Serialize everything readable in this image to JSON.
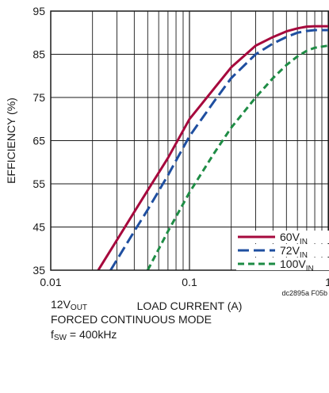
{
  "chart_data": {
    "type": "line",
    "xlabel": "LOAD CURRENT (A)",
    "ylabel": "EFFICIENCY (%)",
    "x_scale": "log",
    "xlim": [
      0.01,
      1
    ],
    "ylim": [
      35,
      95
    ],
    "x_ticks": [
      {
        "value": 0.01,
        "label": "0.01"
      },
      {
        "value": 0.1,
        "label": "0.1"
      },
      {
        "value": 1,
        "label": "1"
      }
    ],
    "y_ticks": [
      {
        "value": 35,
        "label": "35"
      },
      {
        "value": 45,
        "label": "45"
      },
      {
        "value": 55,
        "label": "55"
      },
      {
        "value": 65,
        "label": "65"
      },
      {
        "value": 75,
        "label": "75"
      },
      {
        "value": 85,
        "label": "85"
      },
      {
        "value": 95,
        "label": "95"
      }
    ],
    "grid": true,
    "legend_position": "bottom-right",
    "series": [
      {
        "name": "60V",
        "name_sub": "IN",
        "color": "#a6093d",
        "dash": "solid",
        "x": [
          0.022,
          0.03,
          0.04,
          0.05,
          0.07,
          0.1,
          0.15,
          0.2,
          0.3,
          0.4,
          0.5,
          0.6,
          0.7,
          0.8,
          1.0
        ],
        "y": [
          35,
          42,
          48.5,
          53.5,
          61,
          70,
          77,
          82,
          87,
          89,
          90.3,
          91,
          91.4,
          91.5,
          91.5
        ]
      },
      {
        "name": "72V",
        "name_sub": "IN",
        "color": "#1f4fa0",
        "dash": "dashed",
        "x": [
          0.027,
          0.04,
          0.05,
          0.07,
          0.1,
          0.15,
          0.2,
          0.3,
          0.4,
          0.5,
          0.6,
          0.7,
          0.8,
          1.0
        ],
        "y": [
          35,
          44,
          49,
          57,
          66,
          74,
          79.5,
          85,
          87.5,
          89,
          90,
          90.4,
          90.6,
          90.6
        ]
      },
      {
        "name": "100V",
        "name_sub": "IN",
        "color": "#1e8c45",
        "dash": "dashed",
        "x": [
          0.05,
          0.07,
          0.1,
          0.15,
          0.2,
          0.3,
          0.4,
          0.5,
          0.6,
          0.7,
          0.8,
          1.0
        ],
        "y": [
          35,
          44,
          53,
          62,
          68,
          75,
          79.5,
          82.5,
          84.5,
          85.8,
          86.5,
          87
        ]
      }
    ]
  },
  "figure_code": "dc2895a F05b",
  "conditions": {
    "line1_main": "12V",
    "line1_sub": "OUT",
    "line2": "FORCED CONTINUOUS MODE",
    "line3_main": "f",
    "line3_sub": "SW",
    "line3_rest": " = 400kHz"
  }
}
